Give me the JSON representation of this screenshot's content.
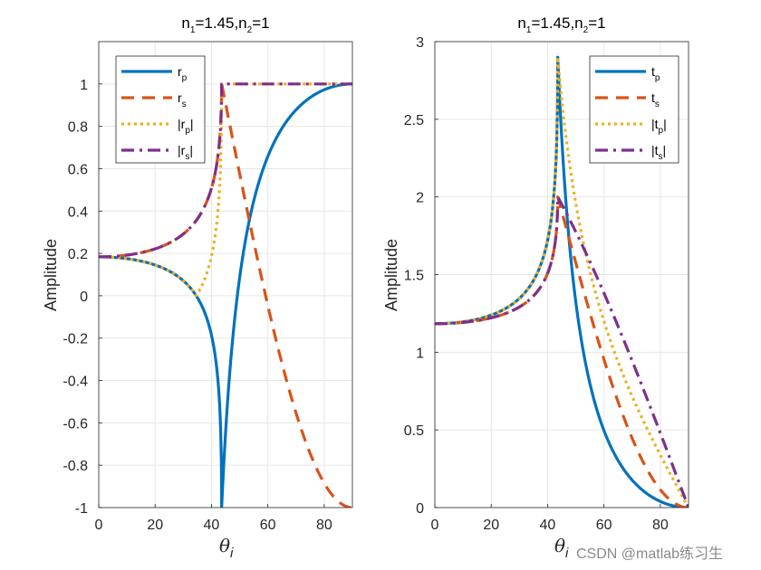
{
  "watermark": "CSDN @matlab练习生",
  "colors": {
    "rp": "#0072BD",
    "rs": "#D95319",
    "abs_rp": "#EDB120",
    "abs_rs": "#7E2F8E"
  },
  "chart_data": [
    {
      "type": "line",
      "title": "n1=1.45,n2=1",
      "title_main1": "n",
      "title_sub1": "1",
      "title_main2": "=1.45,n",
      "title_sub2": "2",
      "title_main3": "=1",
      "xlabel": "θi",
      "xlabel_main": "θ",
      "xlabel_sub": "i",
      "ylabel": "Amplitude",
      "xlim": [
        0,
        90
      ],
      "ylim": [
        -1,
        1.2
      ],
      "xticks": [
        0,
        20,
        40,
        60,
        80
      ],
      "yticks": [
        -1,
        -0.8,
        -0.6,
        -0.4,
        -0.2,
        0,
        0.2,
        0.4,
        0.6,
        0.8,
        1
      ],
      "ytick_labels": [
        "-1",
        "-0.8",
        "-0.6",
        "-0.4",
        "-0.2",
        "0",
        "0.2",
        "0.4",
        "0.6",
        "0.8",
        "1"
      ],
      "grid": true,
      "legend_position": "top-left",
      "series": [
        {
          "key": "rp",
          "name": "rp",
          "main": "r",
          "sub": "p",
          "style": "solid",
          "color": "#0072BD"
        },
        {
          "key": "rs",
          "name": "rs",
          "main": "r",
          "sub": "s",
          "style": "dashed",
          "color": "#D95319"
        },
        {
          "key": "abs_rp",
          "name": "|rp|",
          "main": "|r",
          "sub": "p",
          "tail": "|",
          "style": "dotted",
          "color": "#EDB120"
        },
        {
          "key": "abs_rs",
          "name": "|rs|",
          "main": "|r",
          "sub": "s",
          "tail": "|",
          "style": "dashdot",
          "color": "#7E2F8E"
        }
      ]
    },
    {
      "type": "line",
      "title": "n1=1.45,n2=1",
      "title_main1": "n",
      "title_sub1": "1",
      "title_main2": "=1.45,n",
      "title_sub2": "2",
      "title_main3": "=1",
      "xlabel": "θi",
      "xlabel_main": "θ",
      "xlabel_sub": "i",
      "ylabel": "Amplitude",
      "xlim": [
        0,
        90
      ],
      "ylim": [
        0,
        3
      ],
      "xticks": [
        0,
        20,
        40,
        60,
        80
      ],
      "yticks": [
        0,
        0.5,
        1,
        1.5,
        2,
        2.5,
        3
      ],
      "ytick_labels": [
        "0",
        "0.5",
        "1",
        "1.5",
        "2",
        "2.5",
        "3"
      ],
      "grid": true,
      "legend_position": "top-right",
      "series": [
        {
          "key": "tp",
          "name": "tp",
          "main": "t",
          "sub": "p",
          "style": "solid",
          "color": "#0072BD"
        },
        {
          "key": "ts",
          "name": "ts",
          "main": "t",
          "sub": "s",
          "style": "dashed",
          "color": "#D95319"
        },
        {
          "key": "abs_tp",
          "name": "|tp|",
          "main": "|t",
          "sub": "p",
          "tail": "|",
          "style": "dotted",
          "color": "#EDB120"
        },
        {
          "key": "abs_ts",
          "name": "|ts|",
          "main": "|t",
          "sub": "s",
          "tail": "|",
          "style": "dashdot",
          "color": "#7E2F8E"
        }
      ]
    }
  ]
}
